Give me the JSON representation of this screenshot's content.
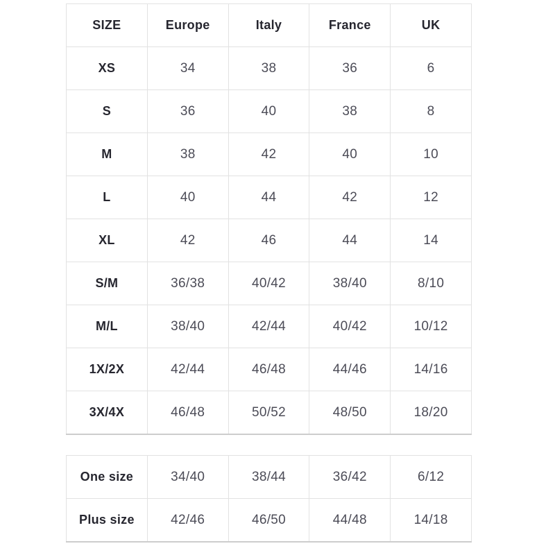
{
  "size_table": {
    "columns": [
      "SIZE",
      "Europe",
      "Italy",
      "France",
      "UK"
    ],
    "rows": [
      {
        "label": "XS",
        "values": [
          "34",
          "38",
          "36",
          "6"
        ]
      },
      {
        "label": "S",
        "values": [
          "36",
          "40",
          "38",
          "8"
        ]
      },
      {
        "label": "M",
        "values": [
          "38",
          "42",
          "40",
          "10"
        ]
      },
      {
        "label": "L",
        "values": [
          "40",
          "44",
          "42",
          "12"
        ]
      },
      {
        "label": "XL",
        "values": [
          "42",
          "46",
          "44",
          "14"
        ]
      },
      {
        "label": "S/M",
        "values": [
          "36/38",
          "40/42",
          "38/40",
          "8/10"
        ]
      },
      {
        "label": "M/L",
        "values": [
          "38/40",
          "42/44",
          "40/42",
          "10/12"
        ]
      },
      {
        "label": "1X/2X",
        "values": [
          "42/44",
          "46/48",
          "44/46",
          "14/16"
        ]
      },
      {
        "label": "3X/4X",
        "values": [
          "46/48",
          "50/52",
          "48/50",
          "18/20"
        ]
      }
    ]
  },
  "special_table": {
    "rows": [
      {
        "label": "One size",
        "values": [
          "34/40",
          "38/44",
          "36/42",
          "6/12"
        ]
      },
      {
        "label": "Plus size",
        "values": [
          "42/46",
          "46/50",
          "44/48",
          "14/18"
        ]
      }
    ]
  },
  "colors": {
    "background": "#ffffff",
    "border": "#e2e2e2",
    "border_bottom": "#cdcdcd",
    "label_text": "#26262f",
    "value_text": "#4c4c57"
  }
}
